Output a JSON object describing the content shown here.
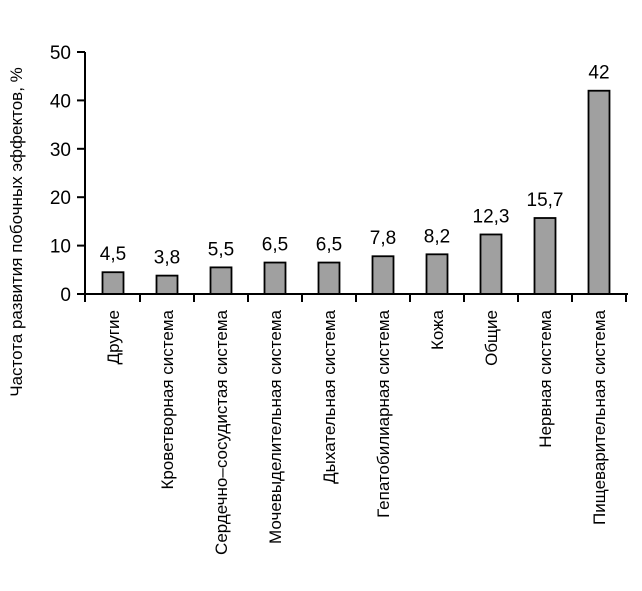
{
  "chart_data": {
    "type": "bar",
    "categories": [
      "Другие",
      "Кроветворная система",
      "Сердечно–сосудистая система",
      "Мочевыделительная система",
      "Дыхательная система",
      "Гепатобилиарная система",
      "Кожа",
      "Общие",
      "Нервная система",
      "Пищеварительная система"
    ],
    "values": [
      4.5,
      3.8,
      5.5,
      6.5,
      6.5,
      7.8,
      8.2,
      12.3,
      15.7,
      42
    ],
    "data_labels": [
      "4,5",
      "3,8",
      "5,5",
      "6,5",
      "6,5",
      "7,8",
      "8,2",
      "12,3",
      "15,7",
      "42"
    ],
    "title": "",
    "xlabel": "",
    "ylabel": "Частота развития побочных эффектов, %",
    "ylim": [
      0,
      50
    ],
    "yticks": [
      0,
      10,
      20,
      30,
      40,
      50
    ],
    "ytick_labels": [
      "0",
      "10",
      "20",
      "30",
      "40",
      "50"
    ],
    "grid": false,
    "legend": "none",
    "bar_color": "#a0a0a0"
  }
}
